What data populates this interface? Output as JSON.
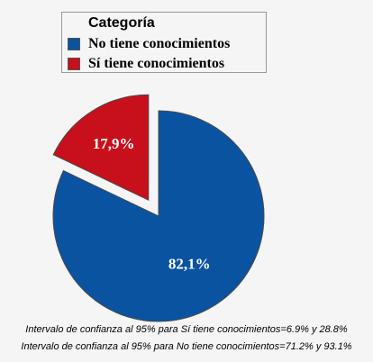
{
  "chart_data": {
    "type": "pie",
    "legend": {
      "title": "Categoría",
      "placement": "top-left"
    },
    "slices": [
      {
        "label": "No tiene conocimientos",
        "value": 82.1,
        "display": "82,1%",
        "color": "#0a53a1",
        "exploded": false
      },
      {
        "label": "Sí tiene conocimientos",
        "value": 17.9,
        "display": "17,9%",
        "color": "#c8101c",
        "exploded": true
      }
    ]
  },
  "notes": [
    "Intervalo de confianza al 95% para Sí tiene conocimientos=6.9% y 28.8%",
    "Intervalo de confianza al 95% para No tiene conocimientos=71.2% y 93.1%"
  ]
}
